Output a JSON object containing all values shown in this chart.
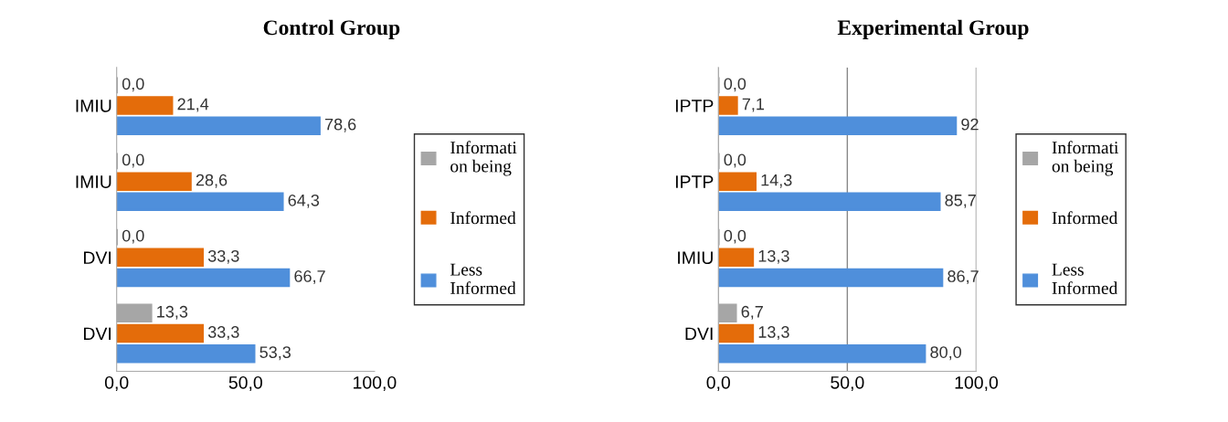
{
  "chart_data": [
    {
      "type": "bar",
      "orientation": "horizontal",
      "title": "Control Group",
      "categories": [
        "IMIU",
        "IMIU",
        "DVI",
        "DVI"
      ],
      "xlim": [
        0,
        100
      ],
      "xticks": [
        {
          "value": 0,
          "label": "0,0"
        },
        {
          "value": 50,
          "label": "50,0"
        },
        {
          "value": 100,
          "label": "100,0"
        }
      ],
      "grid": false,
      "legend": "right",
      "series": [
        {
          "name": "Informati\non being",
          "color": "#a6a6a6",
          "values": [
            0.0,
            0.0,
            0.0,
            13.3
          ],
          "value_labels": [
            "0,0",
            "0,0",
            "0,0",
            "13,3"
          ]
        },
        {
          "name": "Informed",
          "color": "#e46c0a",
          "values": [
            21.4,
            28.6,
            33.3,
            33.3
          ],
          "value_labels": [
            "21,4",
            "28,6",
            "33,3",
            "33,3"
          ]
        },
        {
          "name": "Less\nInformed",
          "color": "#4f8fdb",
          "values": [
            78.6,
            64.3,
            66.7,
            53.3
          ],
          "value_labels": [
            "78,6",
            "64,3",
            "66,7",
            "53,3"
          ]
        }
      ]
    },
    {
      "type": "bar",
      "orientation": "horizontal",
      "title": "Experimental Group",
      "categories": [
        "IPTP",
        "IPTP",
        "IMIU",
        "DVI"
      ],
      "xlim": [
        0,
        100
      ],
      "xticks": [
        {
          "value": 0,
          "label": "0,0"
        },
        {
          "value": 50,
          "label": "50,0"
        },
        {
          "value": 100,
          "label": "100,0"
        }
      ],
      "grid": "x",
      "legend": "right",
      "series": [
        {
          "name": "Informati\non being",
          "color": "#a6a6a6",
          "values": [
            0.0,
            0.0,
            0.0,
            6.7
          ],
          "value_labels": [
            "0,0",
            "0,0",
            "0,0",
            "6,7"
          ]
        },
        {
          "name": "Informed",
          "color": "#e46c0a",
          "values": [
            7.1,
            14.3,
            13.3,
            13.3
          ],
          "value_labels": [
            "7,1",
            "14,3",
            "13,3",
            "13,3"
          ]
        },
        {
          "name": "Less\nInformed",
          "color": "#4f8fdb",
          "values": [
            92,
            85.7,
            86.7,
            80.0
          ],
          "value_labels": [
            "92",
            "85,7",
            "86,7",
            "80,0"
          ]
        }
      ]
    }
  ]
}
